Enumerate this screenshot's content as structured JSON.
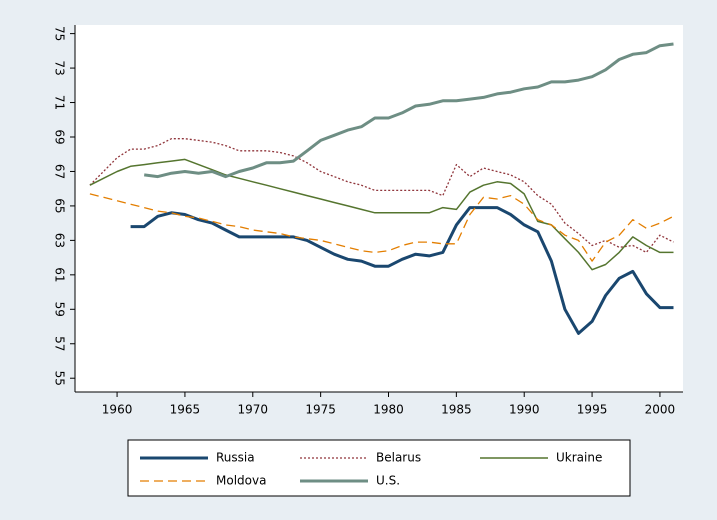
{
  "chart_data": {
    "type": "line",
    "x": [
      1958,
      1959,
      1960,
      1961,
      1962,
      1963,
      1964,
      1965,
      1966,
      1967,
      1968,
      1969,
      1970,
      1971,
      1972,
      1973,
      1974,
      1975,
      1976,
      1977,
      1978,
      1979,
      1980,
      1981,
      1982,
      1983,
      1984,
      1985,
      1986,
      1987,
      1988,
      1989,
      1990,
      1991,
      1992,
      1993,
      1994,
      1995,
      1996,
      1997,
      1998,
      1999,
      2000,
      2001
    ],
    "series": [
      {
        "name": "Russia",
        "color": "#1a476f",
        "style": "solid",
        "width": 3,
        "values": [
          null,
          null,
          null,
          63.8,
          63.8,
          64.4,
          64.6,
          64.5,
          64.2,
          64.0,
          63.6,
          63.2,
          63.2,
          63.2,
          63.2,
          63.2,
          63.0,
          62.6,
          62.2,
          61.9,
          61.8,
          61.5,
          61.5,
          61.9,
          62.2,
          62.1,
          62.3,
          63.9,
          64.9,
          64.9,
          64.9,
          64.5,
          63.9,
          63.5,
          61.8,
          59.0,
          57.6,
          58.3,
          59.8,
          60.8,
          61.2,
          59.9,
          59.1,
          59.1
        ]
      },
      {
        "name": "Belarus",
        "color": "#90353b",
        "style": "dotted",
        "width": 1.3,
        "values": [
          66.2,
          67.0,
          67.8,
          68.3,
          68.3,
          68.5,
          68.9,
          68.9,
          68.8,
          68.7,
          68.5,
          68.2,
          68.2,
          68.2,
          68.1,
          67.9,
          67.5,
          67.0,
          66.7,
          66.4,
          66.2,
          65.9,
          65.9,
          65.9,
          65.9,
          65.9,
          65.6,
          67.4,
          66.7,
          67.2,
          67.0,
          66.8,
          66.4,
          65.6,
          65.1,
          64.0,
          63.4,
          62.7,
          63.0,
          62.6,
          62.7,
          62.3,
          63.3,
          62.9
        ]
      },
      {
        "name": "Ukraine",
        "color": "#55752f",
        "style": "solid",
        "width": 1.5,
        "values": [
          66.2,
          66.6,
          67.0,
          67.3,
          67.4,
          67.5,
          67.6,
          67.7,
          67.4,
          67.1,
          66.8,
          66.6,
          66.4,
          66.2,
          66.0,
          65.8,
          65.6,
          65.4,
          65.2,
          65.0,
          64.8,
          64.6,
          64.6,
          64.6,
          64.6,
          64.6,
          64.9,
          64.8,
          65.8,
          66.2,
          66.4,
          66.3,
          65.7,
          64.1,
          63.9,
          63.1,
          62.3,
          61.3,
          61.6,
          62.3,
          63.2,
          62.7,
          62.3,
          62.3
        ]
      },
      {
        "name": "Moldova",
        "color": "#e37e00",
        "style": "dashed",
        "width": 1.3,
        "values": [
          65.7,
          65.5,
          65.3,
          65.1,
          64.9,
          64.7,
          64.6,
          64.4,
          64.3,
          64.1,
          63.9,
          63.8,
          63.6,
          63.5,
          63.4,
          63.2,
          63.1,
          63.0,
          62.8,
          62.6,
          62.4,
          62.3,
          62.4,
          62.7,
          62.9,
          62.9,
          62.8,
          62.8,
          64.5,
          65.5,
          65.4,
          65.6,
          65.1,
          64.2,
          63.9,
          63.3,
          63.0,
          61.8,
          62.9,
          63.3,
          64.2,
          63.7,
          64.0,
          64.4
        ]
      },
      {
        "name": "U.S.",
        "color": "#6e8e84",
        "style": "solid",
        "width": 3,
        "values": [
          null,
          null,
          null,
          null,
          66.8,
          66.7,
          66.9,
          67.0,
          66.9,
          67.0,
          66.7,
          67.0,
          67.2,
          67.5,
          67.5,
          67.6,
          68.2,
          68.8,
          69.1,
          69.4,
          69.6,
          70.1,
          70.1,
          70.4,
          70.8,
          70.9,
          71.1,
          71.1,
          71.2,
          71.3,
          71.5,
          71.6,
          71.8,
          71.9,
          72.2,
          72.2,
          72.3,
          72.5,
          72.9,
          73.5,
          73.8,
          73.9,
          74.3,
          74.4
        ]
      }
    ],
    "xlim": [
      1956.9,
      2001.7
    ],
    "xticks": [
      1960,
      1965,
      1970,
      1975,
      1980,
      1985,
      1990,
      1995,
      2000
    ],
    "ylim": [
      54.2,
      75.5
    ],
    "yticks": [
      55,
      57,
      59,
      61,
      63,
      65,
      67,
      69,
      71,
      73,
      75
    ],
    "grid": false,
    "legend": "bottom"
  }
}
